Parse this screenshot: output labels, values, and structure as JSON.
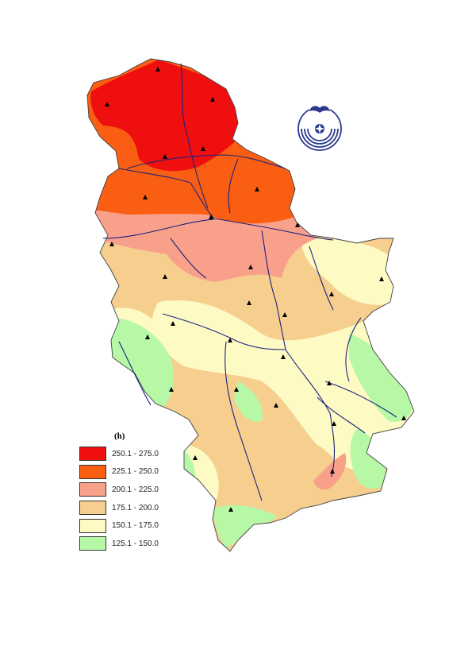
{
  "legend": {
    "title": "(h)",
    "classes": [
      {
        "label": "250.1 - 275.0",
        "color": "#f00f0f"
      },
      {
        "label": "225.1 - 250.0",
        "color": "#f95e12"
      },
      {
        "label": "200.1 - 225.0",
        "color": "#f9a08b"
      },
      {
        "label": "175.1 - 200.0",
        "color": "#f6ce8e"
      },
      {
        "label": "150.1 - 175.0",
        "color": "#fdfac4"
      },
      {
        "label": "125.1 - 150.0",
        "color": "#b6f8a6"
      }
    ]
  },
  "colors": {
    "river": "#1a237e",
    "station": "#000000",
    "logo": "#2b3a8c",
    "border": "#404040"
  },
  "icons": [
    "station-triangle-icon",
    "institution-logo-icon"
  ]
}
